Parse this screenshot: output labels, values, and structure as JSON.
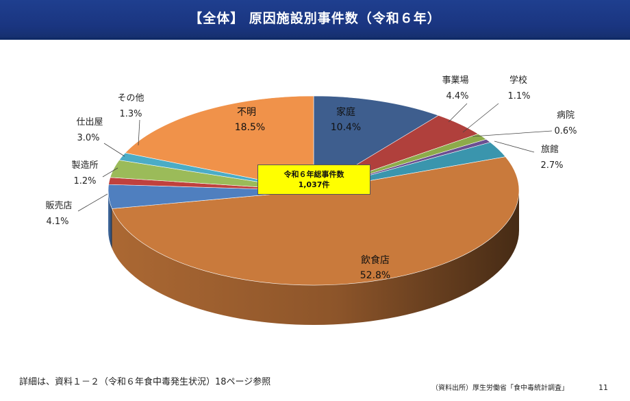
{
  "header": {
    "title": "【全体】 原因施設別事件数（令和６年）"
  },
  "chart_data": {
    "type": "pie",
    "title": "【全体】 原因施設別事件数（令和６年）",
    "unit": "%",
    "slices": [
      {
        "name": "家庭",
        "value": 10.4,
        "label": "10.4%",
        "color": "#3e5e8e"
      },
      {
        "name": "事業場",
        "value": 4.4,
        "label": "4.4%",
        "color": "#b0403c"
      },
      {
        "name": "学校",
        "value": 1.1,
        "label": "1.1%",
        "color": "#8dab4a"
      },
      {
        "name": "病院",
        "value": 0.6,
        "label": "0.6%",
        "color": "#6b4f91"
      },
      {
        "name": "旅館",
        "value": 2.7,
        "label": "2.7%",
        "color": "#3a95ad"
      },
      {
        "name": "飲食店",
        "value": 52.8,
        "label": "52.8%",
        "color": "#c97a3c"
      },
      {
        "name": "販売店",
        "value": 4.1,
        "label": "4.1%",
        "color": "#4f7fbf"
      },
      {
        "name": "製造所",
        "value": 1.2,
        "label": "1.2%",
        "color": "#c0413d"
      },
      {
        "name": "仕出屋",
        "value": 3.0,
        "label": "3.0%",
        "color": "#9bbb59"
      },
      {
        "name": "その他",
        "value": 1.3,
        "label": "1.3%",
        "color": "#4bacc6"
      },
      {
        "name": "不明",
        "value": 18.5,
        "label": "18.5%",
        "color": "#f0924a"
      }
    ],
    "total": {
      "line1": "令和６年総事件数",
      "line2": "1,037件"
    }
  },
  "footer": {
    "note": "詳細は、資料１－２（令和６年食中毒発生状況）18ページ参照",
    "source": "（資料出所）厚生労働省「食中毒統計調査」",
    "page": "11"
  }
}
